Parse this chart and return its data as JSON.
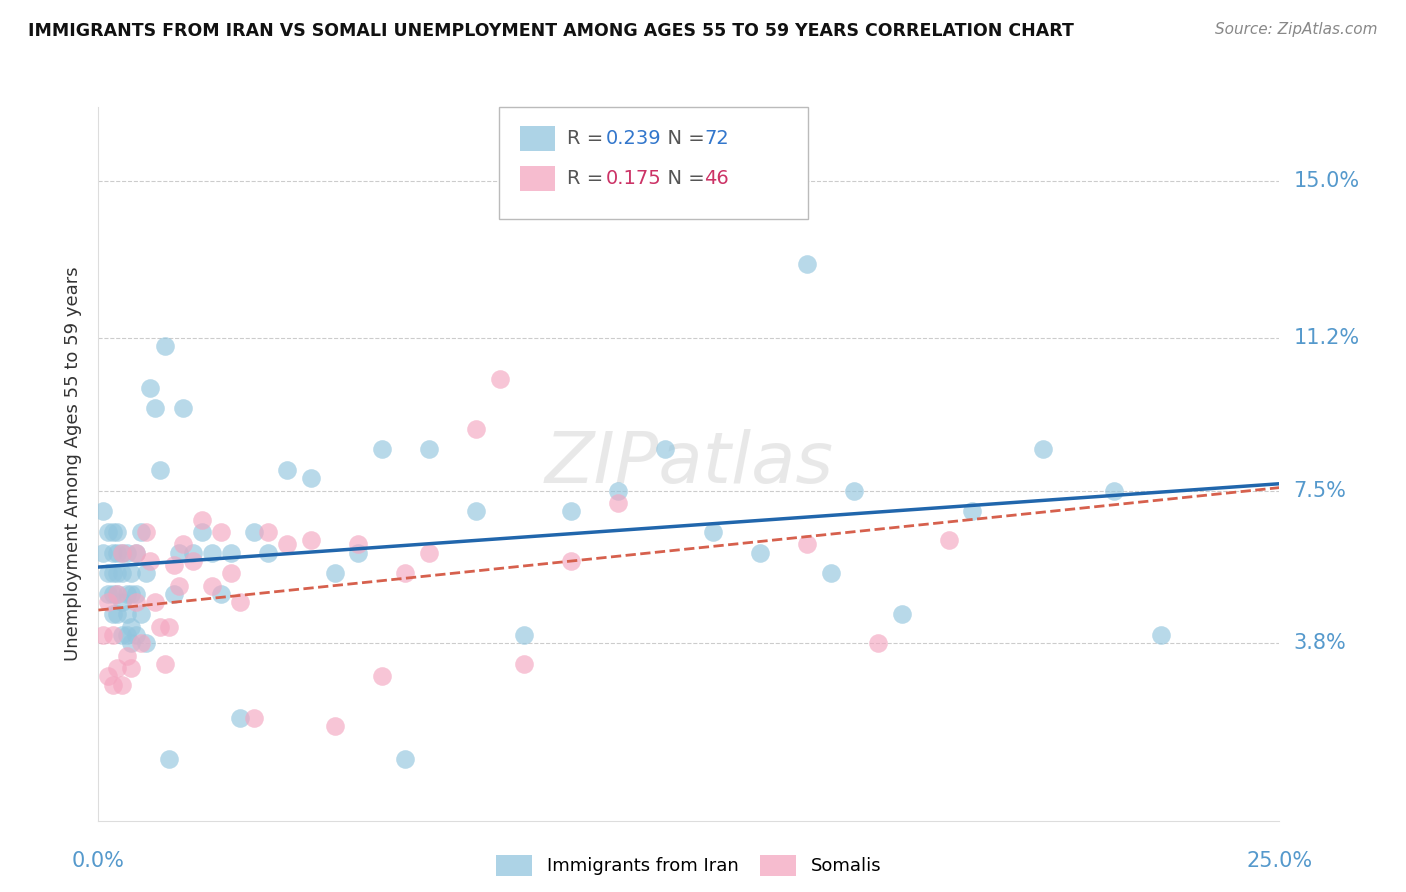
{
  "title": "IMMIGRANTS FROM IRAN VS SOMALI UNEMPLOYMENT AMONG AGES 55 TO 59 YEARS CORRELATION CHART",
  "source": "Source: ZipAtlas.com",
  "ylabel": "Unemployment Among Ages 55 to 59 years",
  "ytick_labels": [
    "3.8%",
    "7.5%",
    "11.2%",
    "15.0%"
  ],
  "ytick_values": [
    0.038,
    0.075,
    0.112,
    0.15
  ],
  "xmin": 0.0,
  "xmax": 0.25,
  "ymin": -0.005,
  "ymax": 0.168,
  "iran_R": 0.239,
  "iran_N": 72,
  "somali_R": 0.175,
  "somali_N": 46,
  "iran_color": "#92c5de",
  "somali_color": "#f4a6c0",
  "iran_line_color": "#2166ac",
  "somali_line_color": "#d6604d",
  "background_color": "#ffffff",
  "grid_color": "#cccccc",
  "iran_x": [
    0.001,
    0.001,
    0.002,
    0.002,
    0.002,
    0.003,
    0.003,
    0.003,
    0.003,
    0.003,
    0.004,
    0.004,
    0.004,
    0.004,
    0.004,
    0.005,
    0.005,
    0.005,
    0.005,
    0.006,
    0.006,
    0.006,
    0.006,
    0.007,
    0.007,
    0.007,
    0.007,
    0.008,
    0.008,
    0.008,
    0.009,
    0.009,
    0.01,
    0.01,
    0.011,
    0.012,
    0.013,
    0.014,
    0.015,
    0.016,
    0.017,
    0.018,
    0.02,
    0.022,
    0.024,
    0.026,
    0.028,
    0.03,
    0.033,
    0.036,
    0.04,
    0.045,
    0.05,
    0.055,
    0.06,
    0.065,
    0.07,
    0.08,
    0.09,
    0.1,
    0.11,
    0.12,
    0.13,
    0.14,
    0.15,
    0.155,
    0.16,
    0.17,
    0.185,
    0.2,
    0.215,
    0.225
  ],
  "iran_y": [
    0.06,
    0.07,
    0.05,
    0.055,
    0.065,
    0.045,
    0.05,
    0.055,
    0.06,
    0.065,
    0.045,
    0.05,
    0.055,
    0.06,
    0.065,
    0.04,
    0.048,
    0.055,
    0.06,
    0.04,
    0.045,
    0.05,
    0.06,
    0.038,
    0.042,
    0.05,
    0.055,
    0.04,
    0.05,
    0.06,
    0.045,
    0.065,
    0.038,
    0.055,
    0.1,
    0.095,
    0.08,
    0.11,
    0.01,
    0.05,
    0.06,
    0.095,
    0.06,
    0.065,
    0.06,
    0.05,
    0.06,
    0.02,
    0.065,
    0.06,
    0.08,
    0.078,
    0.055,
    0.06,
    0.085,
    0.01,
    0.085,
    0.07,
    0.04,
    0.07,
    0.075,
    0.085,
    0.065,
    0.06,
    0.13,
    0.055,
    0.075,
    0.045,
    0.07,
    0.085,
    0.075,
    0.04
  ],
  "somali_x": [
    0.001,
    0.002,
    0.002,
    0.003,
    0.003,
    0.004,
    0.004,
    0.005,
    0.005,
    0.006,
    0.007,
    0.008,
    0.008,
    0.009,
    0.01,
    0.011,
    0.012,
    0.013,
    0.014,
    0.015,
    0.016,
    0.017,
    0.018,
    0.02,
    0.022,
    0.024,
    0.026,
    0.028,
    0.03,
    0.033,
    0.036,
    0.04,
    0.045,
    0.05,
    0.055,
    0.06,
    0.065,
    0.07,
    0.08,
    0.085,
    0.09,
    0.1,
    0.11,
    0.15,
    0.165,
    0.18
  ],
  "somali_y": [
    0.04,
    0.03,
    0.048,
    0.028,
    0.04,
    0.032,
    0.05,
    0.028,
    0.06,
    0.035,
    0.032,
    0.048,
    0.06,
    0.038,
    0.065,
    0.058,
    0.048,
    0.042,
    0.033,
    0.042,
    0.057,
    0.052,
    0.062,
    0.058,
    0.068,
    0.052,
    0.065,
    0.055,
    0.048,
    0.02,
    0.065,
    0.062,
    0.063,
    0.018,
    0.062,
    0.03,
    0.055,
    0.06,
    0.09,
    0.102,
    0.033,
    0.058,
    0.072,
    0.062,
    0.038,
    0.063
  ]
}
